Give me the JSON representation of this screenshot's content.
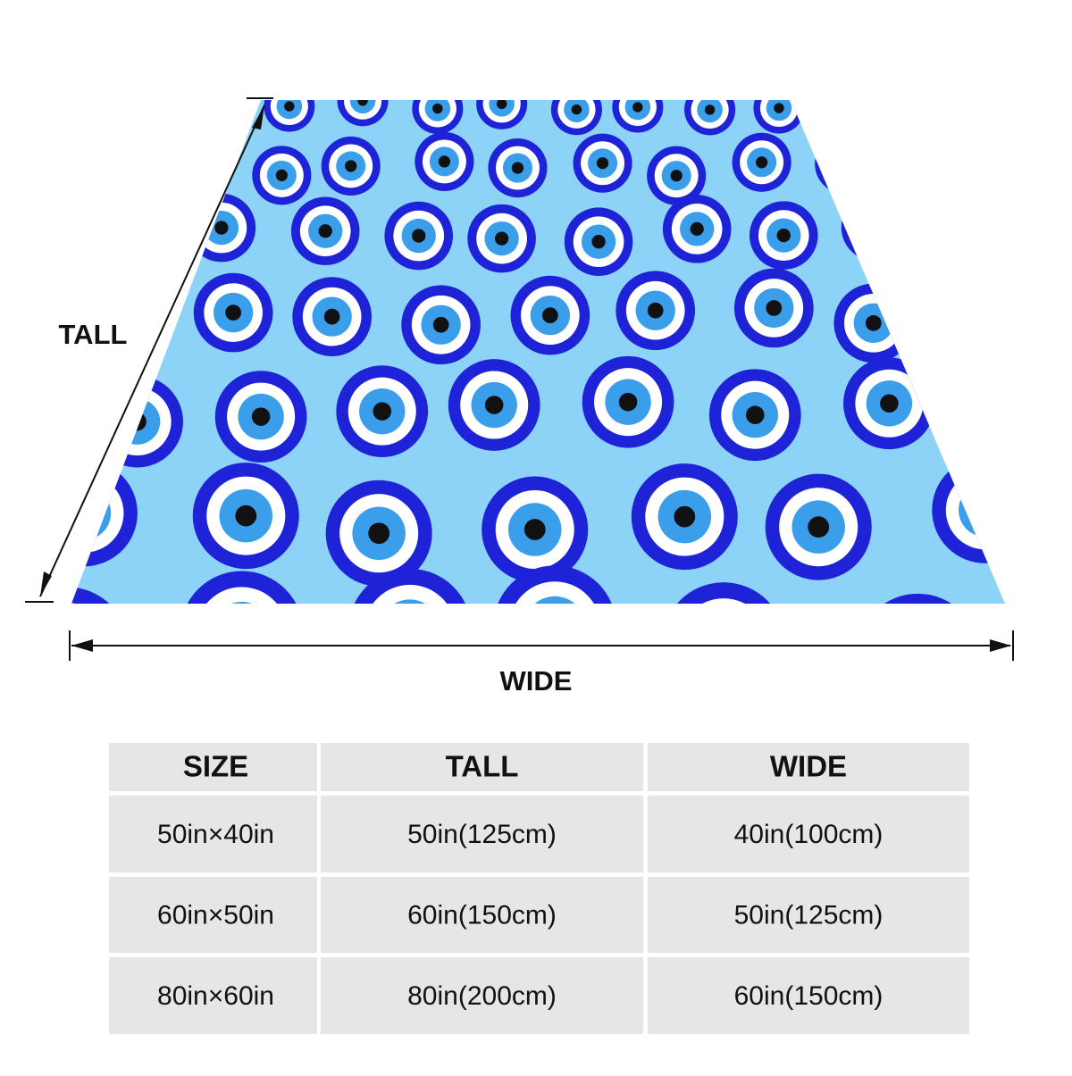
{
  "labels": {
    "tall": "TALL",
    "wide": "WIDE"
  },
  "table": {
    "header": [
      "SIZE",
      "TALL",
      "WIDE"
    ],
    "rows": [
      [
        "50in×40in",
        "50in(125cm)",
        "40in(100cm)"
      ],
      [
        "60in×50in",
        "60in(150cm)",
        "50in(125cm)"
      ],
      [
        "80in×60in",
        "80in(200cm)",
        "60in(150cm)"
      ]
    ]
  }
}
